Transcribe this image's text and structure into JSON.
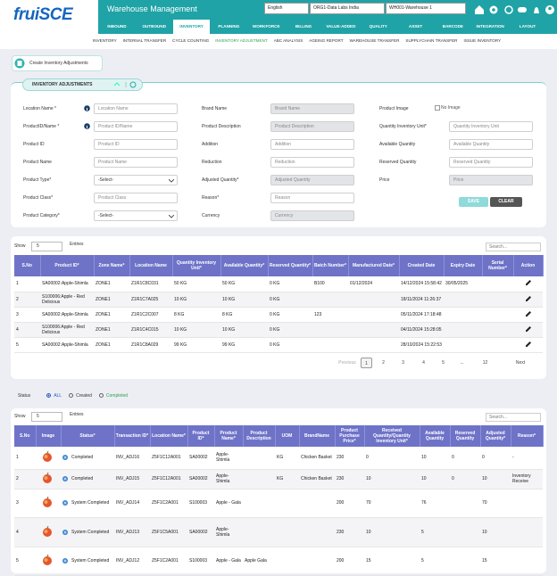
{
  "header": {
    "logo": "fruiSCE",
    "title": "Warehouse Management",
    "language": "English",
    "organization": "ORG1-Data Labs India",
    "warehouse": "WH001-Warehouse 1"
  },
  "nav": [
    "INBOUND",
    "OUTBOUND",
    "INVENTORY",
    "PLANNING",
    "WORKFORCE",
    "BILLING",
    "VALUE-ADDED",
    "QUALITY",
    "ASSET",
    "BARCODE",
    "INTEGRATION",
    "LAYOUT"
  ],
  "subnav": [
    "INVENTORY",
    "INTERNAL TRANSFER",
    "CYCLE COUNTING",
    "INVENTORY ADJUSTMENT",
    "ABC ANALYSIS",
    "AGEING REPORT",
    "WAREHOUSE TRANSFER",
    "SUPPLYCHAIN TRANSFER",
    "ISSUE INVENTORY"
  ],
  "create_button": "Create Inventory Adjustments",
  "form": {
    "title": "INVENTORY ADJUSTMENTS",
    "columns": [
      [
        {
          "label": "Location Name *",
          "placeholder": "Location Name",
          "info": true
        },
        {
          "label": "ProductID/Name *",
          "placeholder": "Product ID/Name",
          "info": true
        },
        {
          "label": "Product ID",
          "placeholder": "Product ID"
        },
        {
          "label": "Product Name",
          "placeholder": "Product Name"
        },
        {
          "label": "Product Type*",
          "placeholder": "-Select-",
          "select": true
        },
        {
          "label": "Product Class*",
          "placeholder": "Product Class"
        },
        {
          "label": "Product Category*",
          "placeholder": "-Select-",
          "select": true
        }
      ],
      [
        {
          "label": "Brand Name",
          "placeholder": "Brand Name",
          "disabled": true
        },
        {
          "label": "Product Description",
          "placeholder": "Product Description",
          "disabled": true
        },
        {
          "label": "Addition",
          "placeholder": "Addition"
        },
        {
          "label": "Reduction",
          "placeholder": "Reduction"
        },
        {
          "label": "Adjusted Quantity*",
          "placeholder": "Adjusted Quantity",
          "disabled": true
        },
        {
          "label": "Reason*",
          "placeholder": "Reason"
        },
        {
          "label": "Currency",
          "placeholder": "Currency",
          "disabled": true
        }
      ],
      [
        {
          "label": "Product Image",
          "image": "No Image"
        },
        {
          "label": "Quantity Inventory Unit*",
          "placeholder": "Quantity Inventory Unit"
        },
        {
          "label": "Available Quantity",
          "placeholder": "Available Quantity"
        },
        {
          "label": "Reserved Quantity",
          "placeholder": "Reserved Quantity"
        },
        {
          "label": "Price",
          "placeholder": "Price",
          "disabled": true
        }
      ]
    ],
    "buttons": [
      "SAVE",
      "CLEAR"
    ]
  },
  "table1": {
    "show": "Show",
    "page_size": 5,
    "entries": "Entries",
    "search": "Search...",
    "columns": [
      "S.No",
      "Product ID*",
      "Zone Name*",
      "Location Name",
      "Quantity Inventory Unit*",
      "Available Quantity*",
      "Reserved Quantity*",
      "Batch Number*",
      "Manufactured Date*",
      "Created Date",
      "Expiry Date",
      "Serial Number*",
      "Action"
    ],
    "rows": [
      [
        1,
        "SA00002:Apple-Shimla",
        "ZONE1",
        "Z1R1C8C031",
        "50 KG",
        "50 KG",
        "0 KG",
        "B100",
        "01/12/2024",
        "14/12/2024 15:58:42",
        "30/05/2025",
        null
      ],
      [
        2,
        "S100006:Apple - Red Delicious",
        "ZONE1",
        "Z1R1C7A025",
        "10 KG",
        "10 KG",
        "0 KG",
        null,
        null,
        "18/11/2024 11:26:37",
        null,
        null
      ],
      [
        3,
        "SA00002:Apple-Shimla",
        "ZONE1",
        "Z1R1C2C007",
        "8 KG",
        "8 KG",
        "0 KG",
        123,
        null,
        "05/11/2024 17:18:48",
        null,
        null
      ],
      [
        4,
        "S100006:Apple - Red Delicious",
        "ZONE1",
        "Z1R1C4C015",
        "10 KG",
        "10 KG",
        "0 KG",
        null,
        null,
        "04/11/2024 15:28:05",
        null,
        null
      ],
      [
        5,
        "SA00002:Apple-Shimla",
        "ZONE1",
        "Z1R1C8A029",
        "99 KG",
        "99 KG",
        "0 KG",
        null,
        null,
        "28/10/2024 15:22:53",
        null,
        null
      ]
    ],
    "pagination": [
      "Previous",
      1,
      2,
      3,
      4,
      5,
      "...",
      12,
      "Next"
    ]
  },
  "status_filter": {
    "label": "Status",
    "options": [
      "ALL",
      "Created",
      "Completed"
    ]
  },
  "table2": {
    "show": "Show",
    "page_size": 5,
    "entries": "Entries",
    "search": "Search...",
    "columns": [
      "S.No",
      "Image",
      "Status*",
      "Transaction ID*",
      "Location Name*",
      "Product ID*",
      "Product Name*",
      "Product Description",
      "UOM",
      "BrandName",
      "Product Purchase Price*",
      "Received Quantity/Quantity Inventory Unit*",
      "Available Quantity",
      "Reserved Quantity",
      "Adjusted Quantity*",
      "Reason*"
    ],
    "rows": [
      [
        1,
        null,
        "Completed",
        "INV_ADJ16",
        "Z5F1C12A001",
        "SA00002",
        "Apple-Shimla",
        null,
        "KG",
        "Chicken Basket",
        230,
        0,
        10,
        0,
        0,
        "-"
      ],
      [
        2,
        null,
        "Completed",
        "INV_ADJ15",
        "Z5F1C12A001",
        "SA00002",
        "Apple-Shimla",
        null,
        "KG",
        "Chicken Basket",
        230,
        10,
        10,
        0,
        10,
        "Inventory Receive"
      ],
      [
        3,
        null,
        "System Completed",
        "INV_ADJ14",
        "Z5F1C2A001",
        "S100003",
        "Apple - Gala",
        null,
        null,
        null,
        200,
        70,
        76,
        null,
        70,
        null
      ],
      [
        4,
        null,
        "System Completed",
        "INV_ADJ13",
        "Z5F1C5A001",
        "SA00002",
        "Apple-Shimla",
        null,
        null,
        null,
        230,
        10,
        5,
        null,
        10,
        null
      ],
      [
        5,
        null,
        "System Completed",
        "INV_ADJ12",
        "Z5F1C2A001",
        "S100003",
        "Apple - Gala",
        "Apple Gala",
        null,
        null,
        200,
        15,
        5,
        null,
        15,
        null
      ]
    ]
  }
}
